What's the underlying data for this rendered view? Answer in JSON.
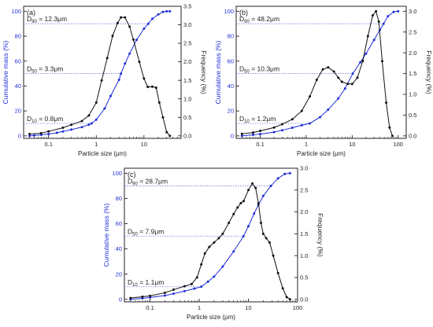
{
  "chart_data": [
    {
      "type": "line",
      "panel_label": "(a)",
      "xlabel": "Particle size (μm)",
      "ylabel_left": "Cumulative mass (%)",
      "ylabel_right": "Frequency (%)",
      "xscale": "log",
      "xlim": [
        0.03,
        60
      ],
      "ylim_left": [
        -2,
        104
      ],
      "ylim_right": [
        -0.0673,
        3.5
      ],
      "xticks": [
        {
          "v": 0.1,
          "l": "0.1"
        },
        {
          "v": 1,
          "l": "1"
        },
        {
          "v": 10,
          "l": "10"
        }
      ],
      "yticks_left": [
        0,
        20,
        40,
        60,
        80,
        100
      ],
      "yticks_right": [
        "0.0",
        "0.5",
        "1.0",
        "1.5",
        "2.0",
        "2.5",
        "3.0",
        "3.5"
      ],
      "colors": {
        "cumulative": "#1f2fd6",
        "frequency": "#111111",
        "left_axis": "#1f2fd6",
        "guide": "#6f7fe0"
      },
      "annotations": [
        {
          "pre": "D",
          "sub": "90",
          "post": " = 12.3μm",
          "y": 90,
          "x": 12.3
        },
        {
          "pre": "D",
          "sub": "50",
          "post": " = 3.3μm",
          "y": 50,
          "x": 3.3
        },
        {
          "pre": "D",
          "sub": "10",
          "post": " = 0.8μm",
          "y": 10,
          "x": 0.8
        }
      ],
      "series": [
        {
          "role": "cumulative",
          "axis": "left",
          "points": [
            [
              0.04,
              0
            ],
            [
              0.05,
              0.3
            ],
            [
              0.07,
              0.8
            ],
            [
              0.1,
              1.5
            ],
            [
              0.15,
              2.5
            ],
            [
              0.2,
              3.5
            ],
            [
              0.3,
              5
            ],
            [
              0.5,
              7
            ],
            [
              0.7,
              9
            ],
            [
              0.8,
              10
            ],
            [
              1,
              13
            ],
            [
              1.5,
              22
            ],
            [
              2,
              32
            ],
            [
              3,
              45
            ],
            [
              3.3,
              50
            ],
            [
              4,
              58
            ],
            [
              5,
              66
            ],
            [
              7,
              77
            ],
            [
              10,
              86
            ],
            [
              12.3,
              90
            ],
            [
              15,
              94
            ],
            [
              20,
              97.5
            ],
            [
              25,
              99.5
            ],
            [
              30,
              100
            ],
            [
              35,
              100
            ]
          ]
        },
        {
          "role": "frequency",
          "axis": "right",
          "points": [
            [
              0.04,
              0.05
            ],
            [
              0.07,
              0.07
            ],
            [
              0.1,
              0.12
            ],
            [
              0.2,
              0.22
            ],
            [
              0.3,
              0.3
            ],
            [
              0.5,
              0.4
            ],
            [
              0.7,
              0.55
            ],
            [
              1,
              0.9
            ],
            [
              1.3,
              1.5
            ],
            [
              1.7,
              2.1
            ],
            [
              2.2,
              2.7
            ],
            [
              2.8,
              3.05
            ],
            [
              3.3,
              3.2
            ],
            [
              4,
              3.2
            ],
            [
              5,
              2.95
            ],
            [
              6,
              2.6
            ],
            [
              8,
              2.0
            ],
            [
              10,
              1.55
            ],
            [
              12,
              1.32
            ],
            [
              15,
              1.33
            ],
            [
              18,
              1.3
            ],
            [
              21,
              0.9
            ],
            [
              25,
              0.5
            ],
            [
              30,
              0.1
            ],
            [
              35,
              0.0
            ]
          ]
        }
      ]
    },
    {
      "type": "line",
      "panel_label": "(b)",
      "xlabel": "Particle size (μm)",
      "ylabel_left": "Cumulative mass (%)",
      "ylabel_right": "Frequency (%)",
      "xscale": "log",
      "xlim": [
        0.03,
        150
      ],
      "ylim_left": [
        -2,
        104
      ],
      "ylim_right": [
        -0.06,
        3.12
      ],
      "xticks": [
        {
          "v": 0.1,
          "l": "0.1"
        },
        {
          "v": 1,
          "l": "1"
        },
        {
          "v": 10,
          "l": "10"
        },
        {
          "v": 100,
          "l": "100"
        }
      ],
      "yticks_left": [
        0,
        20,
        40,
        60,
        80,
        100
      ],
      "yticks_right": [
        "0.0",
        "0.5",
        "1.0",
        "1.5",
        "2.0",
        "2.5",
        "3.0"
      ],
      "colors": {
        "cumulative": "#1f2fd6",
        "frequency": "#111111",
        "left_axis": "#1f2fd6",
        "guide": "#6f7fe0"
      },
      "annotations": [
        {
          "pre": "D",
          "sub": "90",
          "post": " = 48.2μm",
          "y": 90,
          "x": 48.2
        },
        {
          "pre": "D",
          "sub": "50",
          "post": " = 10.3μm",
          "y": 50,
          "x": 10.3
        },
        {
          "pre": "D",
          "sub": "10",
          "post": " = 1.2μm",
          "y": 10,
          "x": 1.2
        }
      ],
      "series": [
        {
          "role": "cumulative",
          "axis": "left",
          "points": [
            [
              0.04,
              0
            ],
            [
              0.07,
              0.8
            ],
            [
              0.1,
              1.5
            ],
            [
              0.2,
              3
            ],
            [
              0.3,
              4.5
            ],
            [
              0.5,
              6.5
            ],
            [
              0.8,
              8.5
            ],
            [
              1.2,
              10
            ],
            [
              2,
              15
            ],
            [
              3,
              21
            ],
            [
              5,
              30
            ],
            [
              7,
              38
            ],
            [
              10.3,
              50
            ],
            [
              15,
              59
            ],
            [
              20,
              66
            ],
            [
              30,
              77
            ],
            [
              40,
              85
            ],
            [
              48.2,
              90
            ],
            [
              60,
              96
            ],
            [
              80,
              99.5
            ],
            [
              100,
              100
            ]
          ]
        },
        {
          "role": "frequency",
          "axis": "right",
          "points": [
            [
              0.04,
              0.05
            ],
            [
              0.07,
              0.08
            ],
            [
              0.1,
              0.12
            ],
            [
              0.2,
              0.2
            ],
            [
              0.3,
              0.28
            ],
            [
              0.5,
              0.4
            ],
            [
              0.8,
              0.6
            ],
            [
              1.2,
              0.95
            ],
            [
              1.7,
              1.35
            ],
            [
              2.3,
              1.6
            ],
            [
              3,
              1.65
            ],
            [
              4,
              1.55
            ],
            [
              5,
              1.4
            ],
            [
              6,
              1.3
            ],
            [
              8,
              1.25
            ],
            [
              10,
              1.25
            ],
            [
              13,
              1.4
            ],
            [
              17,
              1.8
            ],
            [
              22,
              2.4
            ],
            [
              28,
              2.9
            ],
            [
              33,
              3.0
            ],
            [
              38,
              2.75
            ],
            [
              45,
              1.8
            ],
            [
              55,
              0.8
            ],
            [
              65,
              0.2
            ],
            [
              75,
              0.0
            ]
          ]
        }
      ]
    },
    {
      "type": "line",
      "panel_label": "(c)",
      "xlabel": "Particle size (μm)",
      "ylabel_left": "Cumulative mass (%)",
      "ylabel_right": "Frequency (%)",
      "xscale": "log",
      "xlim": [
        0.03,
        100
      ],
      "ylim_left": [
        -2,
        104
      ],
      "ylim_right": [
        -0.0577,
        3.0
      ],
      "xticks": [
        {
          "v": 0.1,
          "l": "0.1"
        },
        {
          "v": 1,
          "l": "1"
        },
        {
          "v": 10,
          "l": "10"
        },
        {
          "v": 100,
          "l": "100"
        }
      ],
      "yticks_left": [
        0,
        20,
        40,
        60,
        80,
        100
      ],
      "yticks_right": [
        "0.0",
        "0.5",
        "1.0",
        "1.5",
        "2.0",
        "2.5",
        "3.0"
      ],
      "colors": {
        "cumulative": "#1f2fd6",
        "frequency": "#111111",
        "left_axis": "#1f2fd6",
        "guide": "#6f7fe0"
      },
      "annotations": [
        {
          "pre": "D",
          "sub": "90",
          "post": " = 28.7μm",
          "y": 90,
          "x": 28.7
        },
        {
          "pre": "D",
          "sub": "50",
          "post": " = 7.9μm",
          "y": 50,
          "x": 7.9
        },
        {
          "pre": "D",
          "sub": "10",
          "post": " = 1.1μm",
          "y": 10,
          "x": 1.1
        }
      ],
      "series": [
        {
          "role": "cumulative",
          "axis": "left",
          "points": [
            [
              0.04,
              0
            ],
            [
              0.07,
              0.8
            ],
            [
              0.1,
              1.5
            ],
            [
              0.2,
              3
            ],
            [
              0.3,
              4.5
            ],
            [
              0.5,
              6.5
            ],
            [
              0.8,
              8.5
            ],
            [
              1.1,
              10
            ],
            [
              1.5,
              14
            ],
            [
              2,
              18
            ],
            [
              3,
              26
            ],
            [
              5,
              38
            ],
            [
              7.9,
              50
            ],
            [
              10,
              58
            ],
            [
              13,
              68
            ],
            [
              16,
              75
            ],
            [
              20,
              82
            ],
            [
              28.7,
              90
            ],
            [
              40,
              96
            ],
            [
              55,
              99.5
            ],
            [
              70,
              100
            ]
          ]
        },
        {
          "role": "frequency",
          "axis": "right",
          "points": [
            [
              0.04,
              0.03
            ],
            [
              0.07,
              0.06
            ],
            [
              0.1,
              0.08
            ],
            [
              0.2,
              0.15
            ],
            [
              0.3,
              0.22
            ],
            [
              0.5,
              0.3
            ],
            [
              0.7,
              0.35
            ],
            [
              0.9,
              0.5
            ],
            [
              1.1,
              0.8
            ],
            [
              1.3,
              1.05
            ],
            [
              1.6,
              1.2
            ],
            [
              2,
              1.3
            ],
            [
              2.5,
              1.4
            ],
            [
              3,
              1.5
            ],
            [
              4,
              1.75
            ],
            [
              5,
              1.95
            ],
            [
              6,
              2.1
            ],
            [
              7,
              2.2
            ],
            [
              8,
              2.25
            ],
            [
              10,
              2.5
            ],
            [
              12,
              2.65
            ],
            [
              14,
              2.55
            ],
            [
              16,
              2.2
            ],
            [
              18,
              1.75
            ],
            [
              20,
              1.5
            ],
            [
              23,
              1.4
            ],
            [
              27,
              1.3
            ],
            [
              32,
              1.0
            ],
            [
              40,
              0.6
            ],
            [
              50,
              0.25
            ],
            [
              60,
              0.05
            ],
            [
              70,
              0.0
            ]
          ]
        }
      ]
    }
  ]
}
